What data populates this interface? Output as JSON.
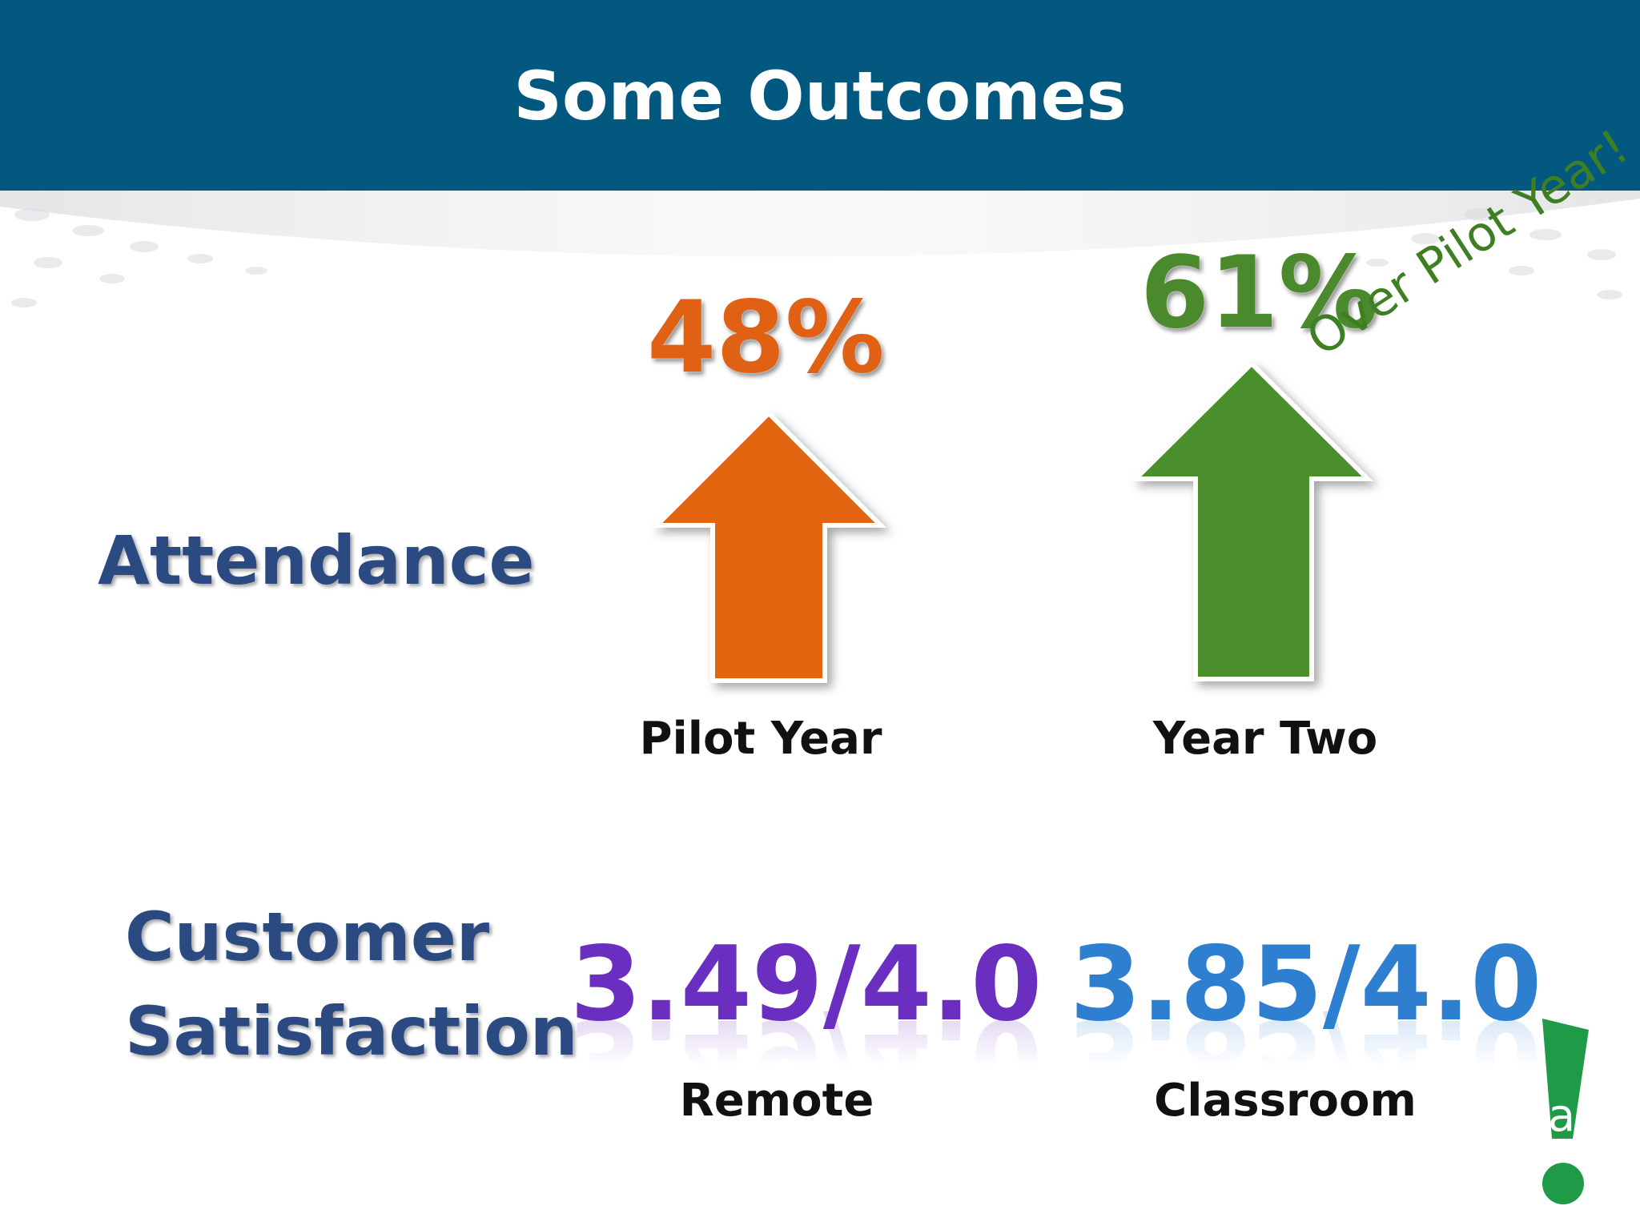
{
  "slide": {
    "title": "Some Outcomes",
    "attendance": {
      "label": "Attendance",
      "pilot": {
        "percent": "48%",
        "caption": "Pilot Year",
        "color": "#e06114"
      },
      "year_two": {
        "percent": "61%",
        "caption": "Year Two",
        "note": "Over Pilot Year!",
        "color": "#4a8a2c"
      }
    },
    "customer_satisfaction": {
      "label_line1": "Customer",
      "label_line2": "Satisfaction",
      "remote": {
        "score": "3.49/4.0",
        "caption": "Remote",
        "color": "#6a2fc0"
      },
      "classroom": {
        "score": "3.85/4.0",
        "caption": "Classroom",
        "color": "#2f7fd0"
      }
    },
    "colors": {
      "header": "#03587f",
      "label": "#2b4a82",
      "logo_green": "#1f9a46"
    },
    "logo": {
      "letter": "a"
    }
  }
}
